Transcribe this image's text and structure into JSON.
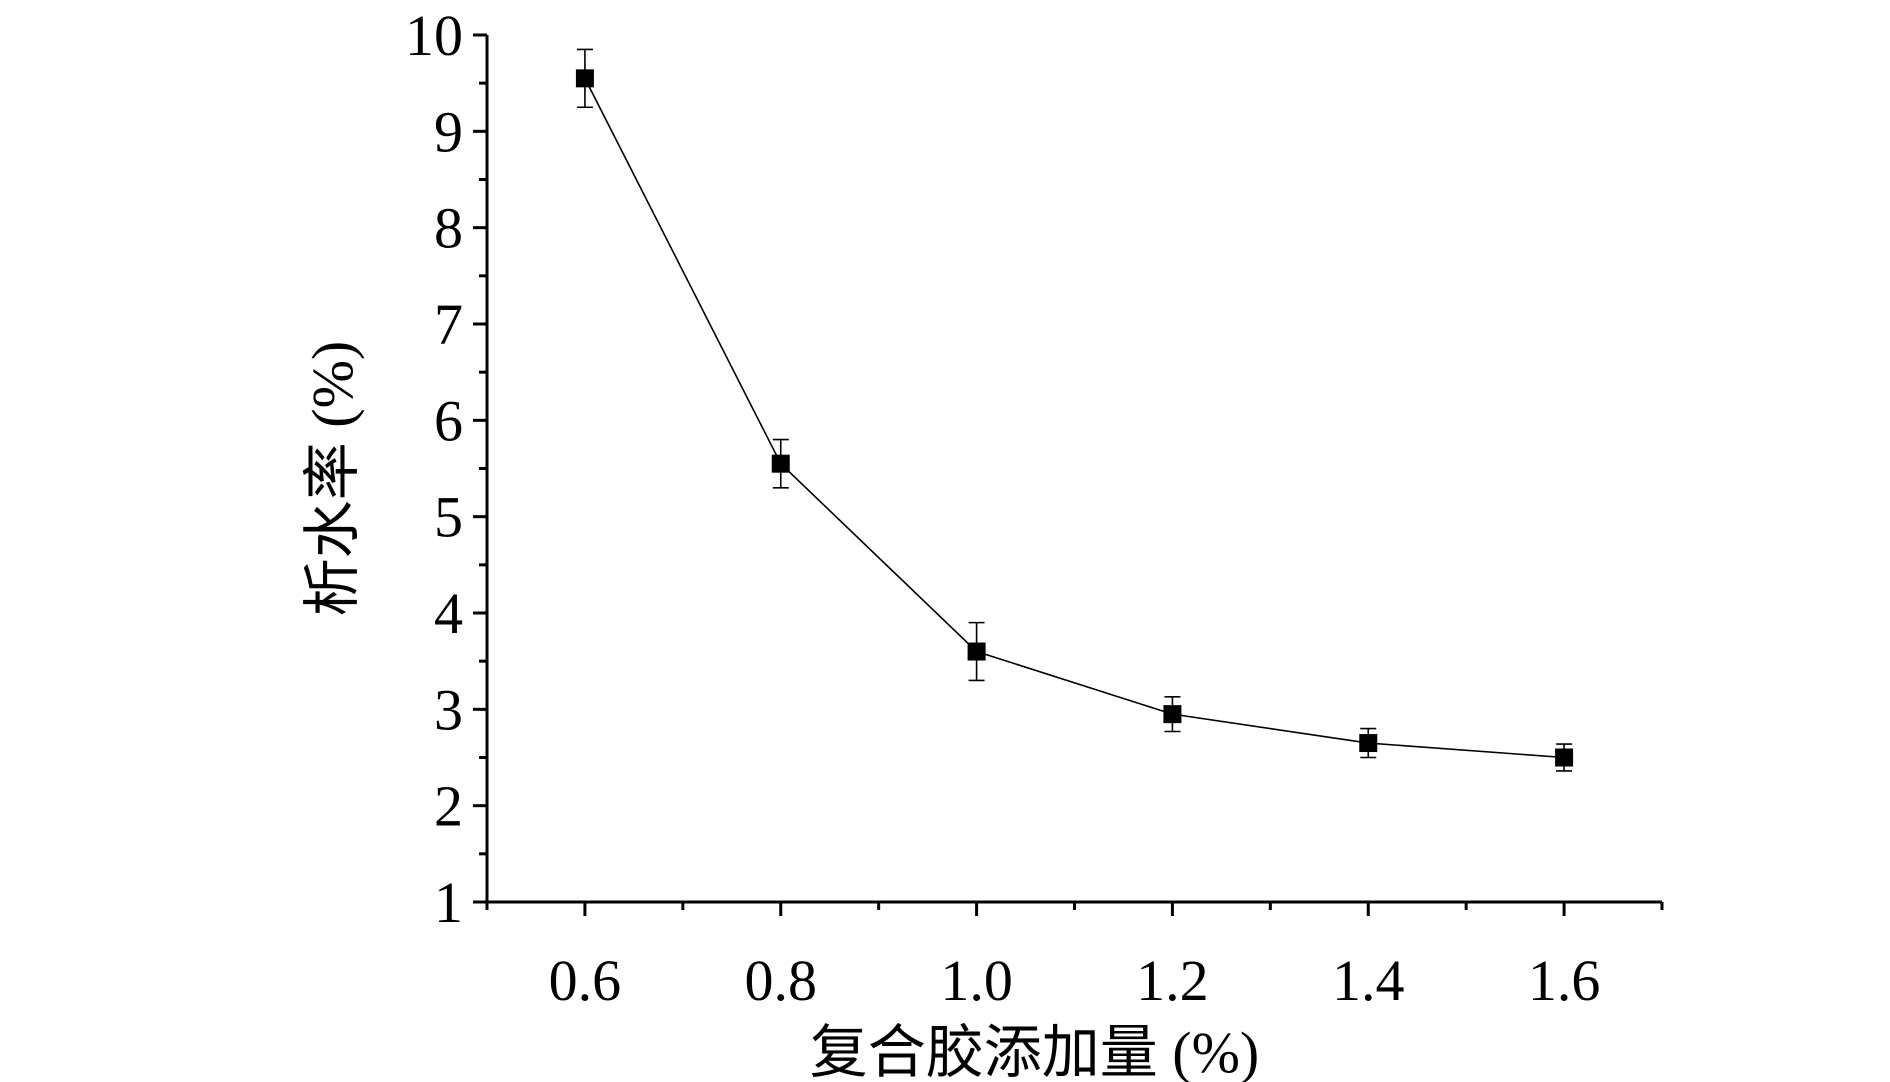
{
  "chart_data": {
    "type": "line",
    "title": "",
    "xlabel": "复合胶添加量 (%)",
    "ylabel": "析水率 (%)",
    "xlim": [
      0.5,
      1.7
    ],
    "ylim": [
      1,
      10
    ],
    "xticks": [
      "0.6",
      "0.8",
      "1.0",
      "1.2",
      "1.4",
      "1.6"
    ],
    "yticks": [
      "1",
      "2",
      "3",
      "4",
      "5",
      "6",
      "7",
      "8",
      "9",
      "10"
    ],
    "grid": false,
    "marker": "square",
    "series": [
      {
        "x": [
          0.6,
          0.8,
          1.0,
          1.2,
          1.4,
          1.6
        ],
        "values": [
          9.55,
          5.55,
          3.6,
          2.95,
          2.65,
          2.5
        ],
        "error": [
          0.3,
          0.25,
          0.3,
          0.18,
          0.15,
          0.14
        ]
      }
    ]
  }
}
